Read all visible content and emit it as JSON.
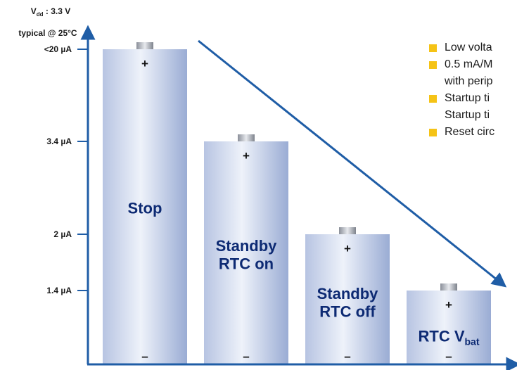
{
  "header": {
    "supply_prefix": "V",
    "supply_sub": "dd",
    "supply_suffix": " : 3.3 V",
    "condition": "typical @ 25°C"
  },
  "colors": {
    "axis": "#1f5da6",
    "bar_light": "#e7ecf7",
    "bar_dark": "#9eafd6",
    "bullet": "#f5c316",
    "label": "#0d2a73"
  },
  "chart_data": {
    "type": "bar",
    "categories": [
      "Stop",
      "Standby RTC on",
      "Standby RTC off",
      "RTC Vbat"
    ],
    "values": [
      20,
      3.4,
      2,
      1.4
    ],
    "y_tick_labels": [
      "<20 µA",
      "3.4 µA",
      "2 µA",
      "1.4 µA"
    ],
    "bar_labels": [
      {
        "lines": [
          "Stop"
        ]
      },
      {
        "lines": [
          "Standby",
          "RTC on"
        ]
      },
      {
        "lines": [
          "Standby",
          "RTC off"
        ]
      },
      {
        "lines": [
          "RTC V"
        ],
        "sub": "bat"
      }
    ],
    "terminal_plus": "+",
    "terminal_minus": "–",
    "trend": "decreasing"
  },
  "notes": [
    {
      "lines": [
        "Low volta"
      ]
    },
    {
      "lines": [
        "0.5 mA/M",
        "with perip"
      ]
    },
    {
      "lines": [
        "Startup ti",
        "Startup ti"
      ]
    },
    {
      "lines": [
        "Reset circ"
      ]
    }
  ]
}
